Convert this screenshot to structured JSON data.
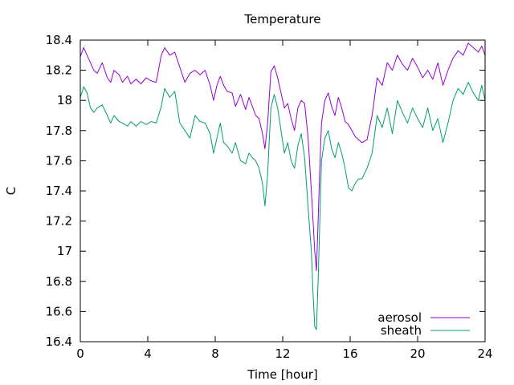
{
  "chart_data": {
    "type": "line",
    "title": "Temperature",
    "xlabel": "Time [hour]",
    "ylabel": "C",
    "xlim": [
      0,
      24
    ],
    "ylim": [
      16.4,
      18.4
    ],
    "xticks": [
      0,
      4,
      8,
      12,
      16,
      20,
      24
    ],
    "yticks": [
      16.4,
      16.6,
      16.8,
      17,
      17.2,
      17.4,
      17.6,
      17.8,
      18,
      18.2,
      18.4
    ],
    "x_tick_labels": [
      "0",
      "4",
      "8",
      "12",
      "16",
      "20",
      "24"
    ],
    "y_tick_labels": [
      "16.4",
      "16.6",
      "16.8",
      "17",
      "17.2",
      "17.4",
      "17.6",
      "17.8",
      "18",
      "18.2",
      "18.4"
    ],
    "grid": false,
    "legend_position": "bottom-right",
    "series": [
      {
        "name": "aerosol",
        "color": "#9400d3",
        "x": [
          0,
          0.2,
          0.4,
          0.6,
          0.8,
          1.0,
          1.3,
          1.6,
          1.8,
          2.0,
          2.3,
          2.5,
          2.8,
          3.0,
          3.3,
          3.6,
          3.9,
          4.2,
          4.5,
          4.8,
          5.0,
          5.3,
          5.6,
          5.9,
          6.2,
          6.5,
          6.8,
          7.1,
          7.4,
          7.7,
          7.9,
          8.1,
          8.3,
          8.5,
          8.7,
          9.0,
          9.2,
          9.5,
          9.8,
          10.0,
          10.2,
          10.4,
          10.6,
          10.8,
          10.95,
          11.1,
          11.3,
          11.5,
          11.7,
          11.9,
          12.1,
          12.3,
          12.5,
          12.7,
          12.9,
          13.1,
          13.3,
          13.5,
          13.7,
          13.8,
          13.9,
          14.0,
          14.1,
          14.2,
          14.3,
          14.5,
          14.7,
          14.9,
          15.1,
          15.3,
          15.5,
          15.7,
          15.9,
          16.1,
          16.3,
          16.5,
          16.7,
          17.0,
          17.3,
          17.6,
          17.9,
          18.2,
          18.5,
          18.8,
          19.1,
          19.4,
          19.7,
          20.0,
          20.3,
          20.6,
          20.9,
          21.2,
          21.5,
          21.8,
          22.1,
          22.4,
          22.7,
          23.0,
          23.3,
          23.6,
          23.8,
          24.0
        ],
        "values": [
          18.29,
          18.35,
          18.3,
          18.25,
          18.2,
          18.18,
          18.25,
          18.15,
          18.12,
          18.2,
          18.17,
          18.12,
          18.16,
          18.11,
          18.14,
          18.11,
          18.15,
          18.13,
          18.12,
          18.3,
          18.35,
          18.3,
          18.32,
          18.22,
          18.12,
          18.18,
          18.2,
          18.17,
          18.2,
          18.1,
          18.0,
          18.1,
          18.16,
          18.1,
          18.06,
          18.05,
          17.96,
          18.04,
          17.94,
          18.02,
          17.96,
          17.9,
          17.88,
          17.78,
          17.68,
          17.84,
          18.19,
          18.23,
          18.15,
          18.05,
          17.95,
          17.98,
          17.88,
          17.8,
          17.95,
          18.0,
          17.98,
          17.76,
          17.4,
          17.2,
          17.0,
          16.87,
          17.2,
          17.55,
          17.85,
          18.0,
          18.05,
          17.96,
          17.9,
          18.02,
          17.95,
          17.86,
          17.84,
          17.8,
          17.76,
          17.74,
          17.72,
          17.74,
          17.9,
          18.15,
          18.1,
          18.25,
          18.2,
          18.3,
          18.24,
          18.2,
          18.28,
          18.22,
          18.15,
          18.2,
          18.14,
          18.25,
          18.1,
          18.2,
          18.28,
          18.33,
          18.3,
          18.38,
          18.35,
          18.32,
          18.36,
          18.3
        ]
      },
      {
        "name": "sheath",
        "color": "#009e73",
        "x": [
          0,
          0.2,
          0.4,
          0.6,
          0.8,
          1.0,
          1.3,
          1.6,
          1.8,
          2.0,
          2.3,
          2.5,
          2.8,
          3.0,
          3.3,
          3.6,
          3.9,
          4.2,
          4.5,
          4.8,
          5.0,
          5.3,
          5.6,
          5.9,
          6.2,
          6.5,
          6.8,
          7.1,
          7.4,
          7.7,
          7.9,
          8.1,
          8.3,
          8.5,
          8.7,
          9.0,
          9.2,
          9.5,
          9.8,
          10.0,
          10.2,
          10.4,
          10.6,
          10.8,
          10.95,
          11.1,
          11.3,
          11.5,
          11.7,
          11.9,
          12.1,
          12.3,
          12.5,
          12.7,
          12.9,
          13.1,
          13.3,
          13.5,
          13.7,
          13.8,
          13.9,
          14.0,
          14.1,
          14.2,
          14.3,
          14.5,
          14.7,
          14.9,
          15.1,
          15.3,
          15.5,
          15.7,
          15.9,
          16.1,
          16.3,
          16.5,
          16.7,
          17.0,
          17.3,
          17.6,
          17.9,
          18.2,
          18.5,
          18.8,
          19.1,
          19.4,
          19.7,
          20.0,
          20.3,
          20.6,
          20.9,
          21.2,
          21.5,
          21.8,
          22.1,
          22.4,
          22.7,
          23.0,
          23.3,
          23.6,
          23.8,
          24.0
        ],
        "values": [
          18.02,
          18.09,
          18.05,
          17.95,
          17.92,
          17.95,
          17.97,
          17.9,
          17.85,
          17.9,
          17.86,
          17.85,
          17.83,
          17.86,
          17.83,
          17.86,
          17.84,
          17.86,
          17.85,
          17.96,
          18.08,
          18.02,
          18.06,
          17.85,
          17.8,
          17.75,
          17.9,
          17.86,
          17.85,
          17.78,
          17.65,
          17.75,
          17.85,
          17.72,
          17.7,
          17.65,
          17.72,
          17.6,
          17.58,
          17.65,
          17.62,
          17.6,
          17.55,
          17.45,
          17.3,
          17.5,
          17.95,
          18.04,
          17.95,
          17.8,
          17.65,
          17.72,
          17.6,
          17.55,
          17.7,
          17.78,
          17.62,
          17.3,
          17.0,
          16.72,
          16.5,
          16.48,
          16.8,
          17.2,
          17.6,
          17.75,
          17.8,
          17.68,
          17.62,
          17.72,
          17.65,
          17.55,
          17.42,
          17.4,
          17.45,
          17.48,
          17.48,
          17.55,
          17.65,
          17.9,
          17.82,
          17.95,
          17.78,
          18.0,
          17.92,
          17.85,
          17.95,
          17.88,
          17.82,
          17.95,
          17.8,
          17.88,
          17.72,
          17.85,
          18.0,
          18.08,
          18.04,
          18.12,
          18.05,
          18.0,
          18.1,
          18.0
        ]
      }
    ]
  }
}
